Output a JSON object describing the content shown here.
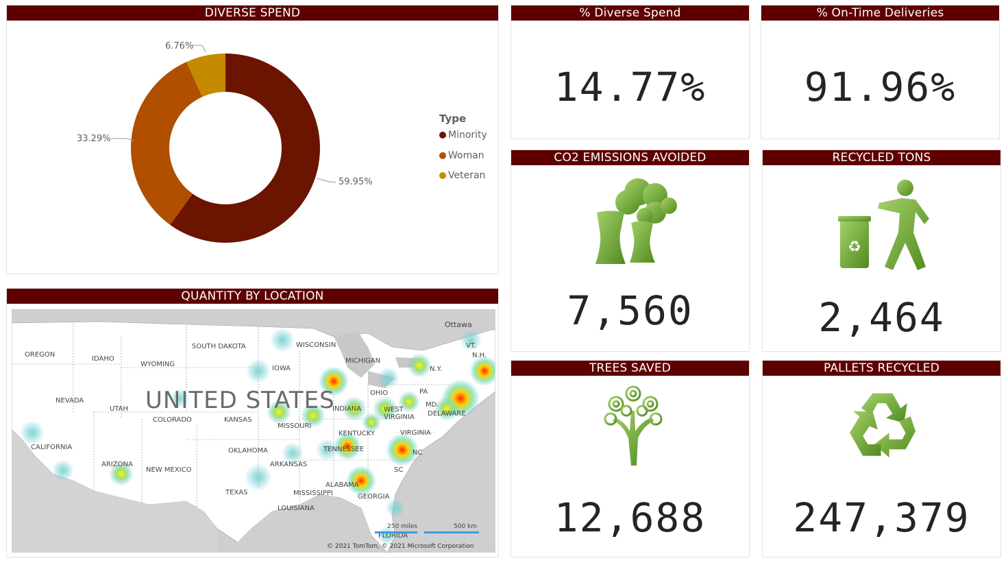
{
  "diverse_spend": {
    "title": "DIVERSE SPEND",
    "legend_title": "Type",
    "legend": [
      {
        "label": "Minority",
        "color": "#6b1400"
      },
      {
        "label": "Woman",
        "color": "#b04f00"
      },
      {
        "label": "Veteran",
        "color": "#c58a00"
      }
    ],
    "slice_labels": {
      "minority": "59.95%",
      "woman": "33.29%",
      "veteran": "6.76%"
    }
  },
  "chart_data": {
    "type": "pie",
    "categories": [
      "Minority",
      "Woman",
      "Veteran"
    ],
    "values": [
      59.95,
      33.29,
      6.76
    ],
    "title": "DIVERSE SPEND"
  },
  "kpis": {
    "diverse_pct": {
      "title": "% Diverse Spend",
      "value": "14.77%"
    },
    "on_time": {
      "title": "% On-Time Deliveries",
      "value": "91.96%"
    },
    "co2": {
      "title": "CO2 EMISSIONS AVOIDED",
      "value": "7,560"
    },
    "recycled": {
      "title": "RECYCLED TONS",
      "value": "2,464"
    },
    "trees": {
      "title": "TREES SAVED",
      "value": "12,688"
    },
    "pallets": {
      "title": "PALLETS RECYCLED",
      "value": "247,379"
    }
  },
  "map": {
    "title": "QUANTITY BY LOCATION",
    "country_label": "UNITED STATES",
    "states": [
      "OREGON",
      "IDAHO",
      "WYOMING",
      "SOUTH DAKOTA",
      "WISCONSIN",
      "MICHIGAN",
      "IOWA",
      "NEVADA",
      "UTAH",
      "COLORADO",
      "KANSAS",
      "MISSOURI",
      "INDIANA",
      "OHIO",
      "PA",
      "N.Y.",
      "VT.",
      "N.H.",
      "MD.",
      "DELAWARE",
      "WEST VIRGINIA",
      "VIRGINIA",
      "KENTUCKY",
      "CALIFORNIA",
      "ARIZONA",
      "NEW MEXICO",
      "OKLAHOMA",
      "ARKANSAS",
      "TENNESSEE",
      "NC",
      "SC",
      "ALABAMA",
      "GEORGIA",
      "MISSISSIPPI",
      "LOUISIANA",
      "TEXAS",
      "Ottawa",
      "FLORIDA"
    ],
    "scale_miles": "250 miles",
    "scale_km": "500 km",
    "copyright": "© 2021 TomTom, © 2021 Microsoft Corporation"
  },
  "colors": {
    "header_bg": "#5e0000",
    "icon_green": "#7cb342"
  }
}
